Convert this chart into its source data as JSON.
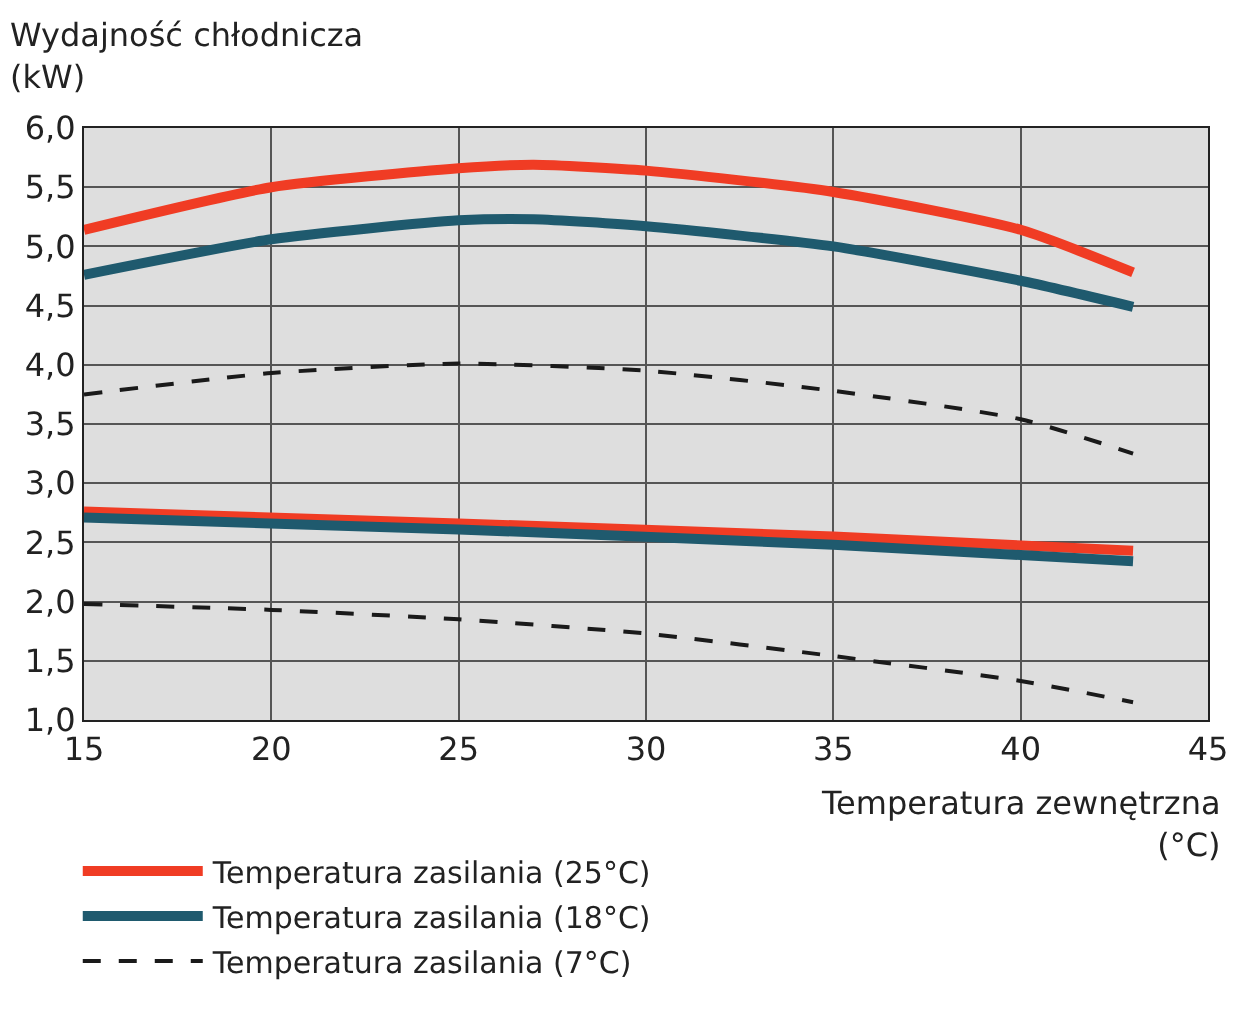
{
  "chart_data": {
    "type": "line",
    "xlabel": "Temperatura zewnętrzna\n(°C)",
    "ylabel": "Wydajność chłodnicza\n(kW)",
    "xlim": [
      15,
      45
    ],
    "xticks": [
      15,
      20,
      25,
      30,
      35,
      40,
      45
    ],
    "ylim": [
      1,
      6
    ],
    "yticks": [
      {
        "value": 1,
        "label": "1,0"
      },
      {
        "value": 1.5,
        "label": "1,5"
      },
      {
        "value": 2,
        "label": "2,0"
      },
      {
        "value": 2.5,
        "label": "2,5"
      },
      {
        "value": 3,
        "label": "3,0"
      },
      {
        "value": 3.5,
        "label": "3,5"
      },
      {
        "value": 4,
        "label": "4,0"
      },
      {
        "value": 4.5,
        "label": "4,5"
      },
      {
        "value": 5,
        "label": "5,0"
      },
      {
        "value": 5.5,
        "label": "5,5"
      },
      {
        "value": 6,
        "label": "6,0"
      }
    ],
    "grid": true,
    "legend": "bottom",
    "series": [
      {
        "name": "Temperatura zasilania (25°C)",
        "color": "#f03c24",
        "line_style": "solid",
        "x": [
          15,
          20,
          25,
          27,
          30,
          35,
          40,
          43
        ],
        "values": [
          5.14,
          5.5,
          5.66,
          5.69,
          5.64,
          5.46,
          5.14,
          4.78
        ]
      },
      {
        "name": "Temperatura zasilania (18°C)",
        "color": "#1f5a6e",
        "line_style": "solid",
        "x": [
          15,
          20,
          25,
          27,
          30,
          35,
          40,
          43
        ],
        "values": [
          4.76,
          5.06,
          5.22,
          5.23,
          5.17,
          5.0,
          4.71,
          4.49
        ]
      },
      {
        "name": "Temperatura zasilania (7°C)",
        "color": "#1a1a1a",
        "line_style": "dashed",
        "x": [
          15,
          20,
          25,
          30,
          35,
          40,
          43
        ],
        "values": [
          3.75,
          3.93,
          4.01,
          3.95,
          3.78,
          3.54,
          3.25
        ]
      },
      {
        "color": "#f03c24",
        "line_style": "solid",
        "x": [
          15,
          25,
          35,
          43
        ],
        "values": [
          2.76,
          2.66,
          2.55,
          2.43
        ]
      },
      {
        "color": "#1f5a6e",
        "line_style": "solid",
        "x": [
          15,
          25,
          35,
          43
        ],
        "values": [
          2.71,
          2.61,
          2.48,
          2.34
        ]
      },
      {
        "color": "#1a1a1a",
        "line_style": "dashed",
        "x": [
          15,
          20,
          25,
          30,
          35,
          40,
          43
        ],
        "values": [
          1.98,
          1.93,
          1.85,
          1.73,
          1.54,
          1.33,
          1.15
        ]
      }
    ]
  }
}
